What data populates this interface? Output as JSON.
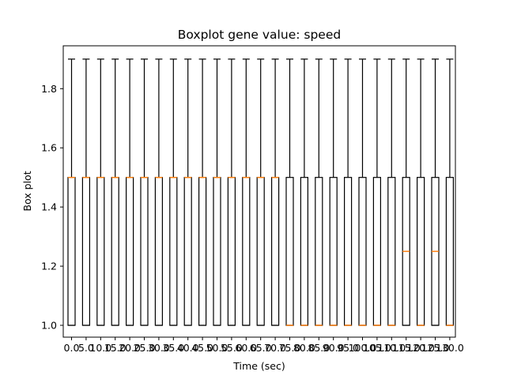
{
  "chart_data": {
    "type": "boxplot",
    "title": "Boxplot gene value: speed",
    "xlabel": "Time (sec)",
    "ylabel": "Box plot",
    "ylim": [
      0.96,
      1.945
    ],
    "yticks": [
      1.0,
      1.2,
      1.4,
      1.6,
      1.8
    ],
    "ytick_labels": [
      "1.0",
      "1.2",
      "1.4",
      "1.6",
      "1.8"
    ],
    "categories": [
      "0.0",
      "5.0",
      "10.0",
      "15.0",
      "20.0",
      "25.0",
      "30.0",
      "35.0",
      "40.0",
      "45.0",
      "50.0",
      "55.0",
      "60.0",
      "65.0",
      "70.0",
      "75.0",
      "80.0",
      "85.0",
      "90.0",
      "95.0",
      "100.0",
      "105.0",
      "110.0",
      "115.0",
      "120.0",
      "125.0",
      "130.0"
    ],
    "boxes": [
      {
        "whisker_low": 1.0,
        "q1": 1.0,
        "median": 1.5,
        "q3": 1.5,
        "whisker_high": 1.9
      },
      {
        "whisker_low": 1.0,
        "q1": 1.0,
        "median": 1.5,
        "q3": 1.5,
        "whisker_high": 1.9
      },
      {
        "whisker_low": 1.0,
        "q1": 1.0,
        "median": 1.5,
        "q3": 1.5,
        "whisker_high": 1.9
      },
      {
        "whisker_low": 1.0,
        "q1": 1.0,
        "median": 1.5,
        "q3": 1.5,
        "whisker_high": 1.9
      },
      {
        "whisker_low": 1.0,
        "q1": 1.0,
        "median": 1.5,
        "q3": 1.5,
        "whisker_high": 1.9
      },
      {
        "whisker_low": 1.0,
        "q1": 1.0,
        "median": 1.5,
        "q3": 1.5,
        "whisker_high": 1.9
      },
      {
        "whisker_low": 1.0,
        "q1": 1.0,
        "median": 1.5,
        "q3": 1.5,
        "whisker_high": 1.9
      },
      {
        "whisker_low": 1.0,
        "q1": 1.0,
        "median": 1.5,
        "q3": 1.5,
        "whisker_high": 1.9
      },
      {
        "whisker_low": 1.0,
        "q1": 1.0,
        "median": 1.5,
        "q3": 1.5,
        "whisker_high": 1.9
      },
      {
        "whisker_low": 1.0,
        "q1": 1.0,
        "median": 1.5,
        "q3": 1.5,
        "whisker_high": 1.9
      },
      {
        "whisker_low": 1.0,
        "q1": 1.0,
        "median": 1.5,
        "q3": 1.5,
        "whisker_high": 1.9
      },
      {
        "whisker_low": 1.0,
        "q1": 1.0,
        "median": 1.5,
        "q3": 1.5,
        "whisker_high": 1.9
      },
      {
        "whisker_low": 1.0,
        "q1": 1.0,
        "median": 1.5,
        "q3": 1.5,
        "whisker_high": 1.9
      },
      {
        "whisker_low": 1.0,
        "q1": 1.0,
        "median": 1.5,
        "q3": 1.5,
        "whisker_high": 1.9
      },
      {
        "whisker_low": 1.0,
        "q1": 1.0,
        "median": 1.5,
        "q3": 1.5,
        "whisker_high": 1.9
      },
      {
        "whisker_low": 1.0,
        "q1": 1.0,
        "median": 1.0,
        "q3": 1.5,
        "whisker_high": 1.9
      },
      {
        "whisker_low": 1.0,
        "q1": 1.0,
        "median": 1.0,
        "q3": 1.5,
        "whisker_high": 1.9
      },
      {
        "whisker_low": 1.0,
        "q1": 1.0,
        "median": 1.0,
        "q3": 1.5,
        "whisker_high": 1.9
      },
      {
        "whisker_low": 1.0,
        "q1": 1.0,
        "median": 1.0,
        "q3": 1.5,
        "whisker_high": 1.9
      },
      {
        "whisker_low": 1.0,
        "q1": 1.0,
        "median": 1.0,
        "q3": 1.5,
        "whisker_high": 1.9
      },
      {
        "whisker_low": 1.0,
        "q1": 1.0,
        "median": 1.0,
        "q3": 1.5,
        "whisker_high": 1.9
      },
      {
        "whisker_low": 1.0,
        "q1": 1.0,
        "median": 1.0,
        "q3": 1.5,
        "whisker_high": 1.9
      },
      {
        "whisker_low": 1.0,
        "q1": 1.0,
        "median": 1.0,
        "q3": 1.5,
        "whisker_high": 1.9
      },
      {
        "whisker_low": 1.0,
        "q1": 1.0,
        "median": 1.25,
        "q3": 1.5,
        "whisker_high": 1.9
      },
      {
        "whisker_low": 1.0,
        "q1": 1.0,
        "median": 1.0,
        "q3": 1.5,
        "whisker_high": 1.9
      },
      {
        "whisker_low": 1.0,
        "q1": 1.0,
        "median": 1.25,
        "q3": 1.5,
        "whisker_high": 1.9
      },
      {
        "whisker_low": 1.0,
        "q1": 1.0,
        "median": 1.0,
        "q3": 1.5,
        "whisker_high": 1.9
      }
    ],
    "grid": false,
    "colors": {
      "box": "#000000",
      "median": "#ff7f0e",
      "background": "#ffffff"
    }
  }
}
